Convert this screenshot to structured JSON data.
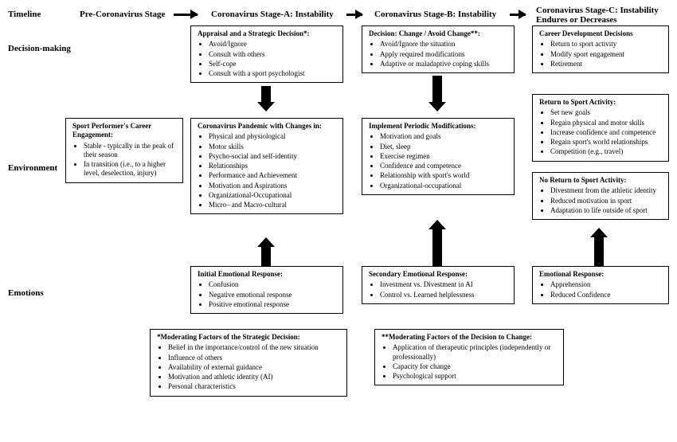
{
  "labels": {
    "timeline": "Timeline",
    "decision": "Decision-making",
    "environment": "Environment",
    "emotions": "Emotions"
  },
  "headers": {
    "pre": "Pre-Coronavirus Stage",
    "a": "Coronavirus Stage-A: Instability",
    "b": "Coronavirus Stage-B: Instability",
    "c": "Coronavirus Stage-C: Instability Endures or Decreases"
  },
  "boxes": {
    "appraisal": {
      "title": "Appraisal and a Strategic Decision*:",
      "items": [
        "Avoid/Ignore",
        "Consult with others",
        "Self-cope",
        "Consult with a sport psychologist"
      ]
    },
    "decisionChange": {
      "title": "Decision: Change / Avoid Change**:",
      "items": [
        "Avoid/Ignore the situation",
        "Apply required modifications",
        "Adaptive or maladaptive coping skills"
      ]
    },
    "careerDev": {
      "title": "Career Development Decisions",
      "items": [
        "Return to sport activity",
        "Modify sport engagement",
        "Retirement"
      ]
    },
    "careerEngage": {
      "title": "Sport Performer's Career Engagement:",
      "items": [
        "Stable -  typically in the peak of their season",
        "In transition (i.e., to a higher level, deselection, injury)"
      ]
    },
    "pandemic": {
      "title": "Coronavirus Pandemic with Changes in:",
      "items": [
        "Physical and physiological",
        "Motor skills",
        "Psycho-social and self-identity",
        "Relationships",
        "Performance and Achievement",
        "Motivation and Aspirations",
        "Organizational-Occupational",
        "Micro– and Macro-cultural"
      ]
    },
    "modifications": {
      "title": "Implement Periodic Modifications:",
      "items": [
        "Motivation and goals",
        "Diet, sleep",
        "Exercise regimen",
        "Confidence and competence",
        "Relationship with sport's world",
        "Organizational-occupational"
      ]
    },
    "returnSport": {
      "title": "Return to Sport Activity:",
      "items": [
        "Set new goals",
        "Regain physical and motor skills",
        "Increase confidence and competence",
        "Regain sport's world relationships",
        "Competition (e.g., travel)"
      ]
    },
    "noReturn": {
      "title": "No Return to Sport Activity:",
      "items": [
        "Divestment from the athletic identity",
        "Reduced motivation in sport",
        "Adaptation to life outside of sport"
      ]
    },
    "initEmo": {
      "title": "Initial Emotional Response:",
      "items": [
        "Confusion",
        "Negative emotional response",
        "Positive emotional response"
      ]
    },
    "secEmo": {
      "title": "Secondary Emotional Response:",
      "items": [
        "Investment vs. Divestment in AI",
        "Control vs. Learned helplessness"
      ]
    },
    "emoResp": {
      "title": "Emotional Response:",
      "items": [
        "Apprehension",
        "Reduced Confidence"
      ]
    },
    "moderatingStrategic": {
      "title": "*Moderating Factors of the Strategic Decision:",
      "items": [
        "Belief in the importance/control of the new situation",
        "Influence of others",
        "Availability of external guidance",
        "Motivation and athletic identity (AI)",
        "Personal characteristics"
      ]
    },
    "moderatingChange": {
      "title": "**Moderating Factors of the Decision to Change:",
      "items": [
        "Application of therapeutic principles (independently or professionally)",
        "Capacity for change",
        "Psychological support"
      ]
    }
  },
  "style": {
    "bg": "#ffffff",
    "fg": "#000000",
    "titleFontSize": 11,
    "bodyFontSize": 9
  }
}
